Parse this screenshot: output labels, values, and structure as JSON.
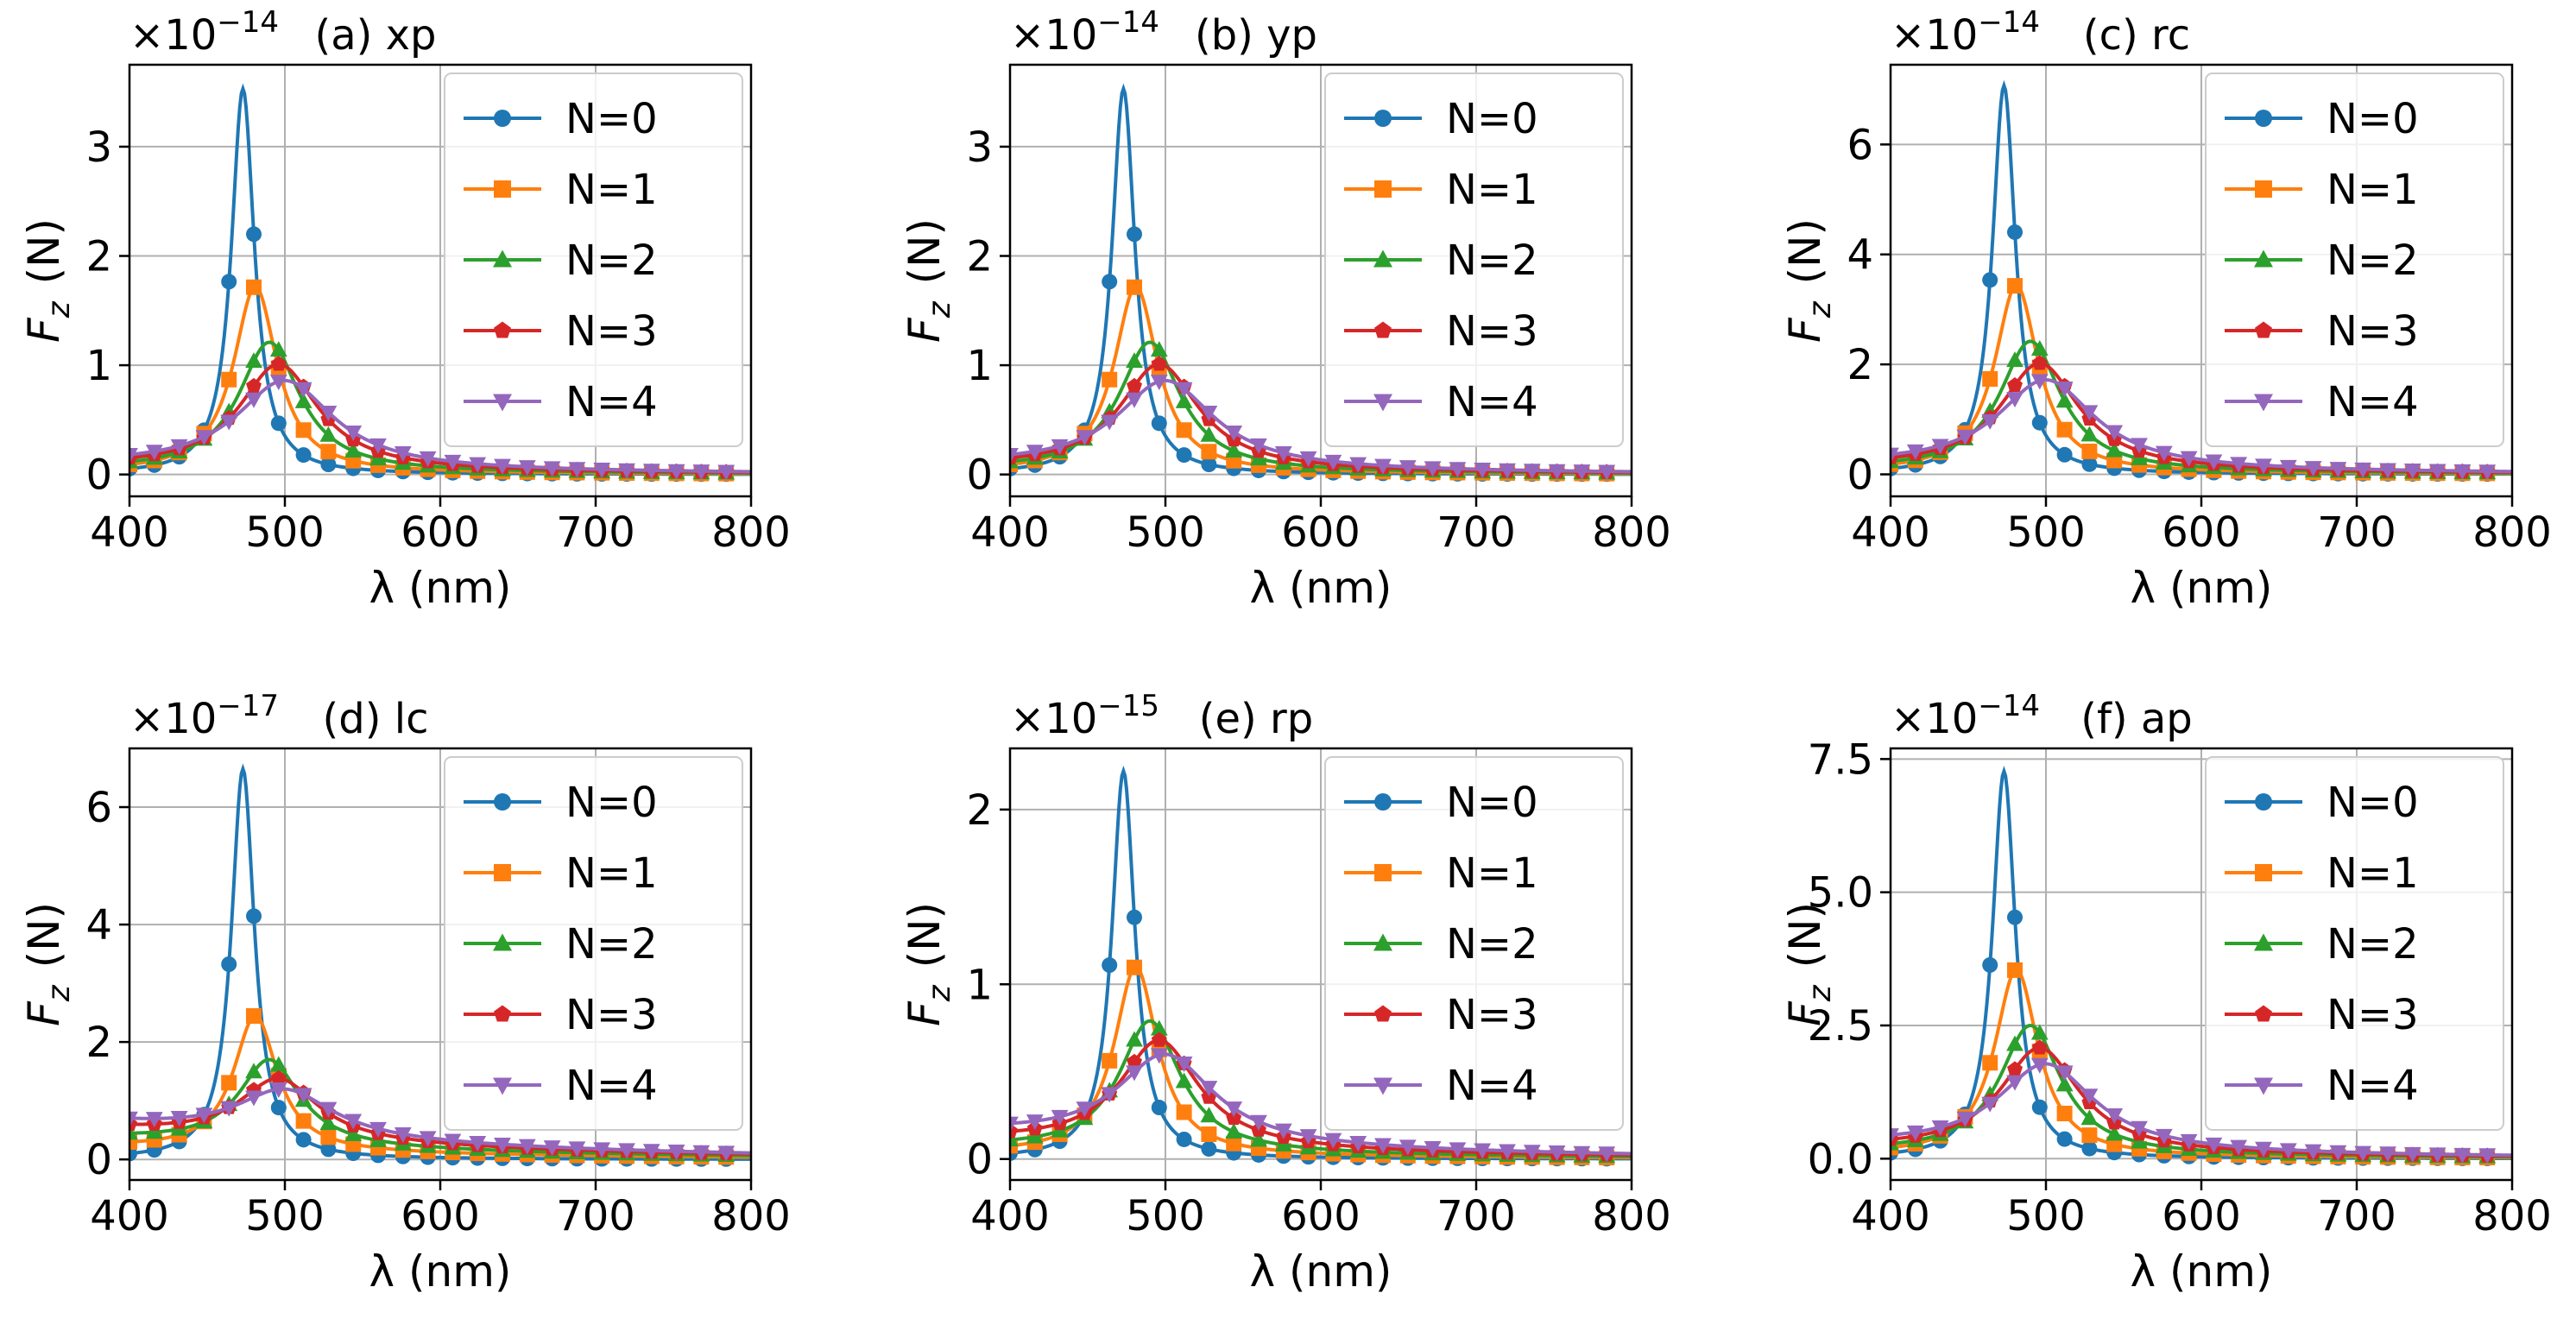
{
  "figure": {
    "series_names": [
      "N=0",
      "N=1",
      "N=2",
      "N=3",
      "N=4"
    ],
    "series_colors": [
      "#1f77b4",
      "#ff7f0e",
      "#2ca02c",
      "#d62728",
      "#9467bd"
    ],
    "series_markers": [
      "circle",
      "square",
      "triangle-up",
      "pentagon",
      "triangle-down"
    ],
    "x_marker_points_nm": [
      400,
      416,
      432,
      448,
      464,
      480,
      496,
      512,
      528,
      544,
      560,
      576,
      592,
      608,
      624,
      640,
      656,
      672,
      688,
      704,
      720,
      736,
      752,
      768,
      784
    ],
    "peak_wavelengths_nm": [
      473,
      481,
      490,
      496,
      500
    ],
    "peak_widths_nm": [
      9,
      17,
      24,
      31,
      38
    ]
  },
  "chart_data": [
    {
      "type": "line",
      "id": "a",
      "title": "(a) xp",
      "scale_text": "×10",
      "scale_exponent": "−14",
      "xlabel": "λ (nm)",
      "ylabel": "F_z (N)",
      "ylabel_main": "F",
      "ylabel_sub": "z",
      "ylabel_unit": "(N)",
      "xlim": [
        400,
        800
      ],
      "ylim": [
        -0.2,
        3.75
      ],
      "xticks": [
        400,
        500,
        600,
        700,
        800
      ],
      "xtick_labels": [
        "400",
        "500",
        "600",
        "700",
        "800"
      ],
      "yticks": [
        0,
        1,
        2,
        3
      ],
      "ytick_labels": [
        "0",
        "1",
        "2",
        "3"
      ],
      "grid": true,
      "legend": "upper right",
      "series": [
        {
          "name": "N=0",
          "peak": 3.53,
          "baseline": 0.0
        },
        {
          "name": "N=1",
          "peak": 1.72,
          "baseline": 0.02
        },
        {
          "name": "N=2",
          "peak": 1.21,
          "baseline": 0.04
        },
        {
          "name": "N=3",
          "peak": 1.01,
          "baseline": 0.06
        },
        {
          "name": "N=4",
          "peak": 0.86,
          "baseline": 0.08
        }
      ]
    },
    {
      "type": "line",
      "id": "b",
      "title": "(b) yp",
      "scale_text": "×10",
      "scale_exponent": "−14",
      "xlabel": "λ (nm)",
      "ylabel": "F_z (N)",
      "ylabel_main": "F",
      "ylabel_sub": "z",
      "ylabel_unit": "(N)",
      "xlim": [
        400,
        800
      ],
      "ylim": [
        -0.2,
        3.75
      ],
      "xticks": [
        400,
        500,
        600,
        700,
        800
      ],
      "xtick_labels": [
        "400",
        "500",
        "600",
        "700",
        "800"
      ],
      "yticks": [
        0,
        1,
        2,
        3
      ],
      "ytick_labels": [
        "0",
        "1",
        "2",
        "3"
      ],
      "grid": true,
      "legend": "upper right",
      "series": [
        {
          "name": "N=0",
          "peak": 3.53,
          "baseline": 0.0
        },
        {
          "name": "N=1",
          "peak": 1.72,
          "baseline": 0.02
        },
        {
          "name": "N=2",
          "peak": 1.21,
          "baseline": 0.04
        },
        {
          "name": "N=3",
          "peak": 1.01,
          "baseline": 0.06
        },
        {
          "name": "N=4",
          "peak": 0.86,
          "baseline": 0.08
        }
      ]
    },
    {
      "type": "line",
      "id": "c",
      "title": "(c) rc",
      "scale_text": "×10",
      "scale_exponent": "−14",
      "xlabel": "λ (nm)",
      "ylabel": "F_z (N)",
      "ylabel_main": "F",
      "ylabel_sub": "z",
      "ylabel_unit": "(N)",
      "xlim": [
        400,
        800
      ],
      "ylim": [
        -0.4,
        7.45
      ],
      "xticks": [
        400,
        500,
        600,
        700,
        800
      ],
      "xtick_labels": [
        "400",
        "500",
        "600",
        "700",
        "800"
      ],
      "yticks": [
        0,
        2,
        4,
        6
      ],
      "ytick_labels": [
        "0",
        "2",
        "4",
        "6"
      ],
      "grid": true,
      "legend": "upper right",
      "series": [
        {
          "name": "N=0",
          "peak": 7.07,
          "baseline": 0.0
        },
        {
          "name": "N=1",
          "peak": 3.44,
          "baseline": 0.04
        },
        {
          "name": "N=2",
          "peak": 2.42,
          "baseline": 0.08
        },
        {
          "name": "N=3",
          "peak": 2.02,
          "baseline": 0.12
        },
        {
          "name": "N=4",
          "peak": 1.72,
          "baseline": 0.16
        }
      ]
    },
    {
      "type": "line",
      "id": "d",
      "title": "(d) lc",
      "scale_text": "×10",
      "scale_exponent": "−17",
      "xlabel": "λ (nm)",
      "ylabel": "F_z (N)",
      "ylabel_main": "F",
      "ylabel_sub": "z",
      "ylabel_unit": "(N)",
      "xlim": [
        400,
        800
      ],
      "ylim": [
        -0.35,
        7.0
      ],
      "xticks": [
        400,
        500,
        600,
        700,
        800
      ],
      "xtick_labels": [
        "400",
        "500",
        "600",
        "700",
        "800"
      ],
      "yticks": [
        0,
        2,
        4,
        6
      ],
      "ytick_labels": [
        "0",
        "2",
        "4",
        "6"
      ],
      "grid": true,
      "legend": "upper right",
      "series": [
        {
          "name": "N=0",
          "peak": 6.65,
          "baseline": 0.0
        },
        {
          "name": "N=1",
          "peak": 2.45,
          "baseline": 0.2
        },
        {
          "name": "N=2",
          "peak": 1.7,
          "baseline": 0.35
        },
        {
          "name": "N=3",
          "peak": 1.38,
          "baseline": 0.5
        },
        {
          "name": "N=4",
          "peak": 1.2,
          "baseline": 0.6
        }
      ]
    },
    {
      "type": "line",
      "id": "e",
      "title": "(e) rp",
      "scale_text": "×10",
      "scale_exponent": "−15",
      "xlabel": "λ (nm)",
      "ylabel": "F_z (N)",
      "ylabel_main": "F",
      "ylabel_sub": "z",
      "ylabel_unit": "(N)",
      "xlim": [
        400,
        800
      ],
      "ylim": [
        -0.12,
        2.35
      ],
      "xticks": [
        400,
        500,
        600,
        700,
        800
      ],
      "xtick_labels": [
        "400",
        "500",
        "600",
        "700",
        "800"
      ],
      "yticks": [
        0,
        1,
        2
      ],
      "ytick_labels": [
        "0",
        "1",
        "2"
      ],
      "grid": true,
      "legend": "upper right",
      "series": [
        {
          "name": "N=0",
          "peak": 2.22,
          "baseline": 0.0
        },
        {
          "name": "N=1",
          "peak": 1.1,
          "baseline": 0.03
        },
        {
          "name": "N=2",
          "peak": 0.79,
          "baseline": 0.06
        },
        {
          "name": "N=3",
          "peak": 0.68,
          "baseline": 0.1
        },
        {
          "name": "N=4",
          "peak": 0.6,
          "baseline": 0.14
        }
      ]
    },
    {
      "type": "line",
      "id": "f",
      "title": "(f) ap",
      "scale_text": "×10",
      "scale_exponent": "−14",
      "xlabel": "λ (nm)",
      "ylabel": "F_z (N)",
      "ylabel_main": "F",
      "ylabel_sub": "z",
      "ylabel_unit": "(N)",
      "xlim": [
        400,
        800
      ],
      "ylim": [
        -0.4,
        7.7
      ],
      "xticks": [
        400,
        500,
        600,
        700,
        800
      ],
      "xtick_labels": [
        "400",
        "500",
        "600",
        "700",
        "800"
      ],
      "yticks": [
        0,
        2.5,
        5,
        7.5
      ],
      "ytick_labels": [
        "0.0",
        "2.5",
        "5.0",
        "7.5"
      ],
      "grid": true,
      "legend": "upper right",
      "series": [
        {
          "name": "N=0",
          "peak": 7.27,
          "baseline": 0.0
        },
        {
          "name": "N=1",
          "peak": 3.55,
          "baseline": 0.06
        },
        {
          "name": "N=2",
          "peak": 2.5,
          "baseline": 0.12
        },
        {
          "name": "N=3",
          "peak": 2.08,
          "baseline": 0.18
        },
        {
          "name": "N=4",
          "peak": 1.78,
          "baseline": 0.24
        }
      ]
    }
  ]
}
